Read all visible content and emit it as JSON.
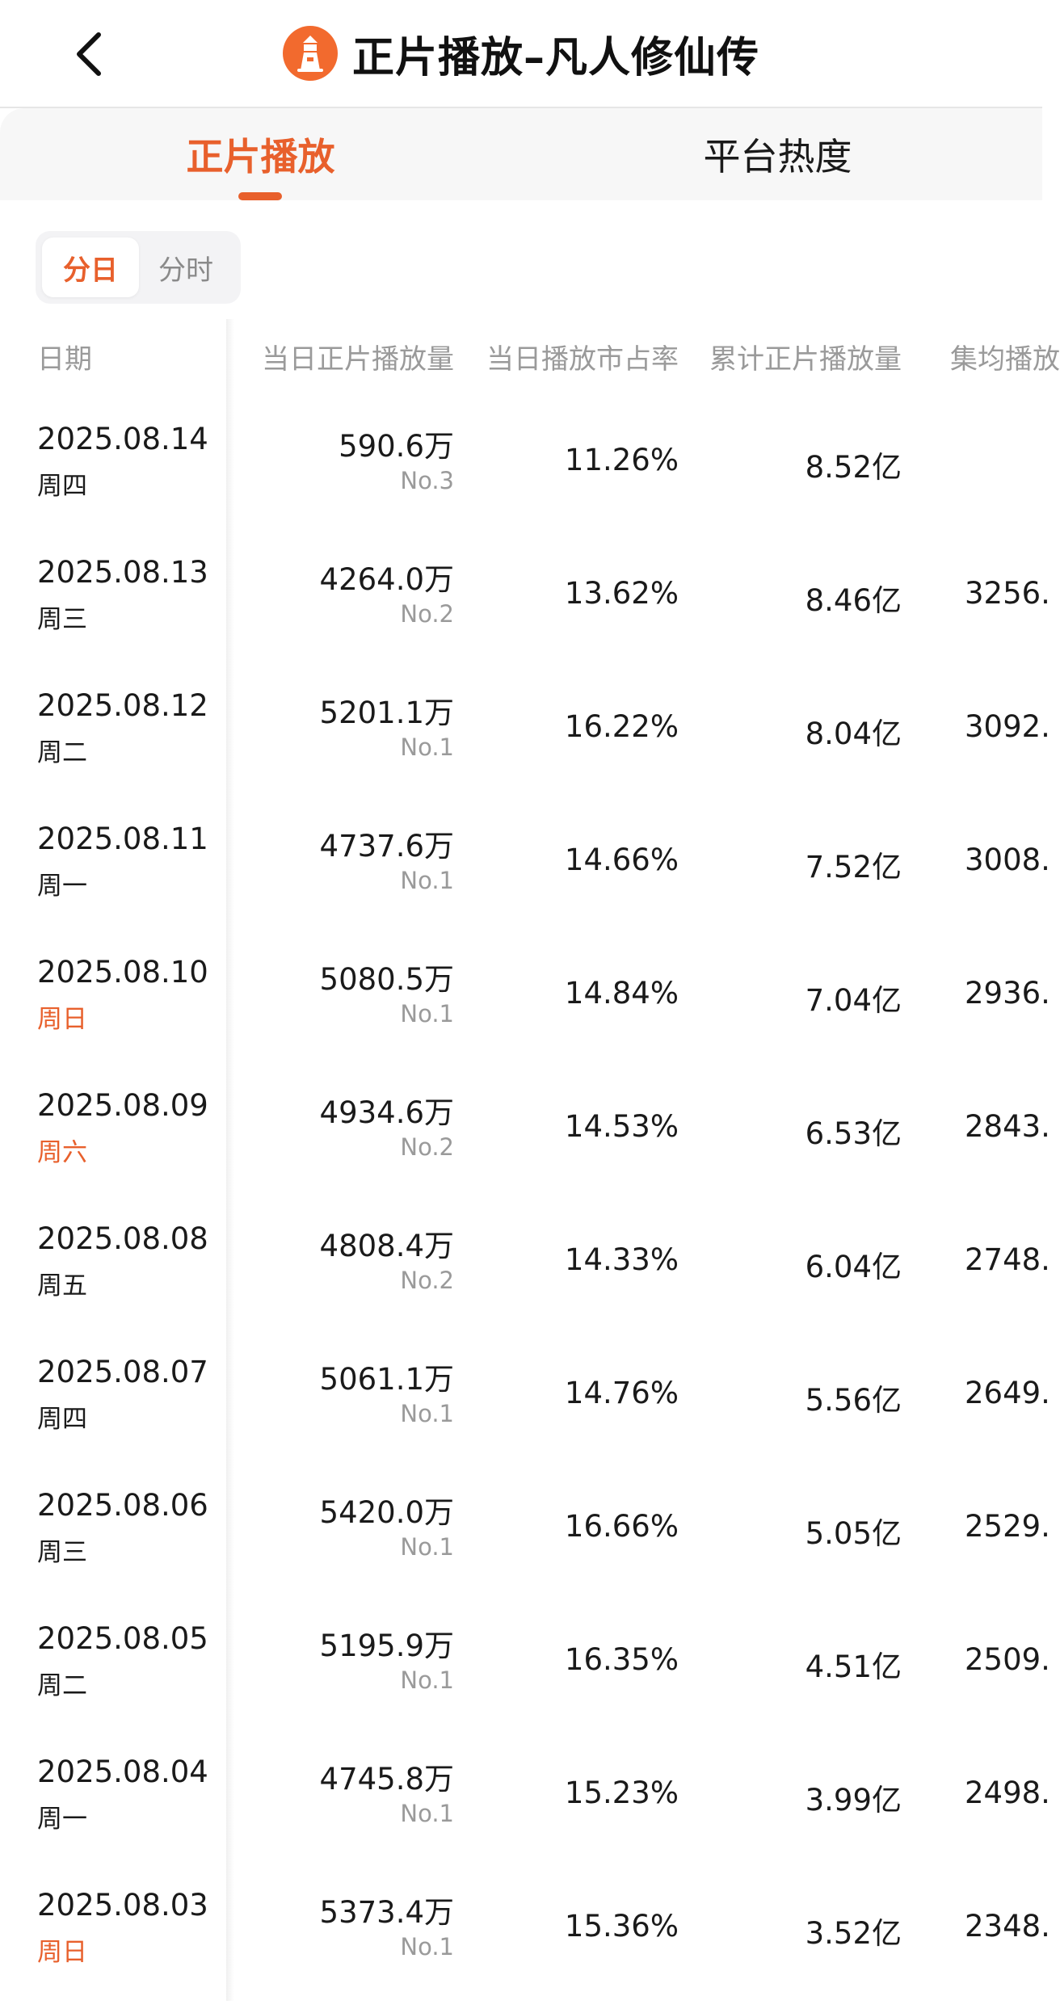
{
  "header": {
    "title": "正片播放–凡人修仙传",
    "back_icon": "chevron-left-icon",
    "logo_icon": "lighthouse-icon",
    "accent": "#e8602c"
  },
  "tabs": [
    {
      "label": "正片播放",
      "active": true
    },
    {
      "label": "平台热度",
      "active": false
    }
  ],
  "toggle": {
    "day": "分日",
    "hour": "分时",
    "selected": "day"
  },
  "table": {
    "headers": {
      "date": "日期",
      "daily": "当日正片播放量",
      "share": "当日播放市占率",
      "total": "累计正片播放量",
      "avg": "集均播放"
    },
    "rows": [
      {
        "date": "2025.08.14",
        "weekday": "周四",
        "weekend": false,
        "daily": "590.6万",
        "rank": "No.3",
        "share": "11.26%",
        "total": "8.52亿",
        "avg": ""
      },
      {
        "date": "2025.08.13",
        "weekday": "周三",
        "weekend": false,
        "daily": "4264.0万",
        "rank": "No.2",
        "share": "13.62%",
        "total": "8.46亿",
        "avg": "3256."
      },
      {
        "date": "2025.08.12",
        "weekday": "周二",
        "weekend": false,
        "daily": "5201.1万",
        "rank": "No.1",
        "share": "16.22%",
        "total": "8.04亿",
        "avg": "3092."
      },
      {
        "date": "2025.08.11",
        "weekday": "周一",
        "weekend": false,
        "daily": "4737.6万",
        "rank": "No.1",
        "share": "14.66%",
        "total": "7.52亿",
        "avg": "3008."
      },
      {
        "date": "2025.08.10",
        "weekday": "周日",
        "weekend": true,
        "daily": "5080.5万",
        "rank": "No.1",
        "share": "14.84%",
        "total": "7.04亿",
        "avg": "2936."
      },
      {
        "date": "2025.08.09",
        "weekday": "周六",
        "weekend": true,
        "daily": "4934.6万",
        "rank": "No.2",
        "share": "14.53%",
        "total": "6.53亿",
        "avg": "2843."
      },
      {
        "date": "2025.08.08",
        "weekday": "周五",
        "weekend": false,
        "daily": "4808.4万",
        "rank": "No.2",
        "share": "14.33%",
        "total": "6.04亿",
        "avg": "2748."
      },
      {
        "date": "2025.08.07",
        "weekday": "周四",
        "weekend": false,
        "daily": "5061.1万",
        "rank": "No.1",
        "share": "14.76%",
        "total": "5.56亿",
        "avg": "2649."
      },
      {
        "date": "2025.08.06",
        "weekday": "周三",
        "weekend": false,
        "daily": "5420.0万",
        "rank": "No.1",
        "share": "16.66%",
        "total": "5.05亿",
        "avg": "2529."
      },
      {
        "date": "2025.08.05",
        "weekday": "周二",
        "weekend": false,
        "daily": "5195.9万",
        "rank": "No.1",
        "share": "16.35%",
        "total": "4.51亿",
        "avg": "2509."
      },
      {
        "date": "2025.08.04",
        "weekday": "周一",
        "weekend": false,
        "daily": "4745.8万",
        "rank": "No.1",
        "share": "15.23%",
        "total": "3.99亿",
        "avg": "2498."
      },
      {
        "date": "2025.08.03",
        "weekday": "周日",
        "weekend": true,
        "daily": "5373.4万",
        "rank": "No.1",
        "share": "15.36%",
        "total": "3.52亿",
        "avg": "2348."
      }
    ]
  }
}
